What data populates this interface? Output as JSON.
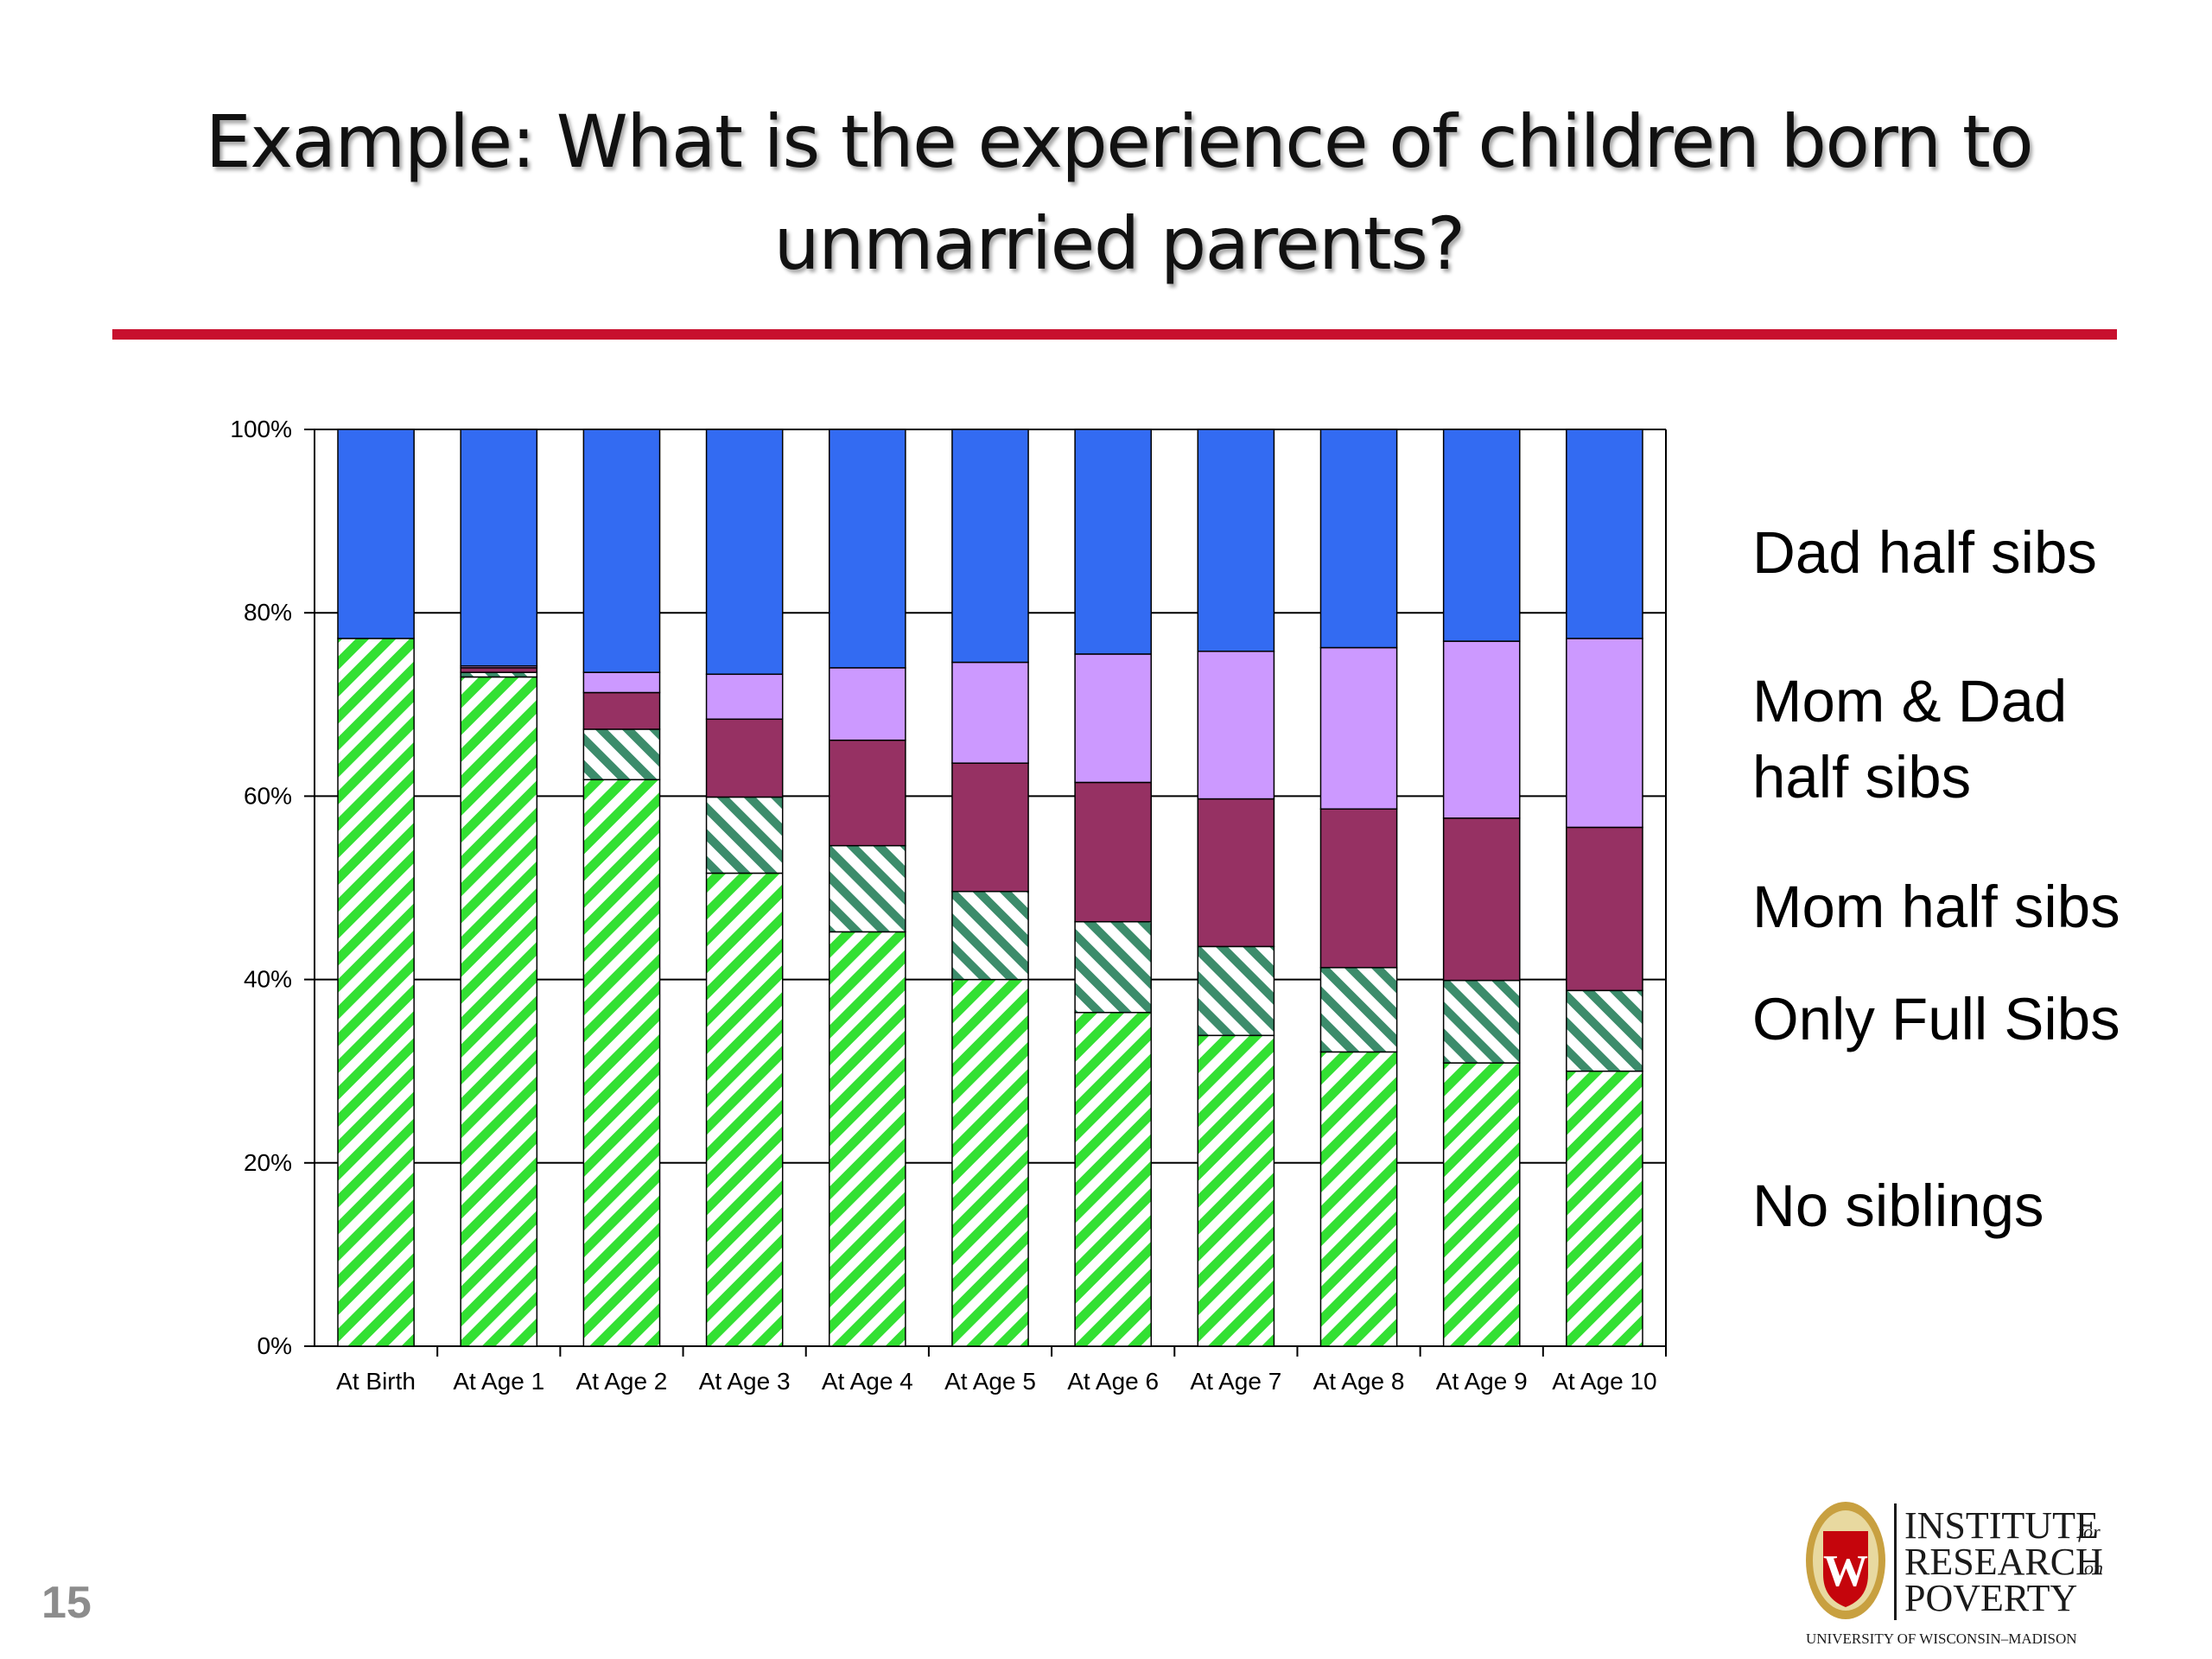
{
  "slide": {
    "title_line1": "Example: What is the experience of children born to",
    "title_line2": "unmarried parents?",
    "page_number": "15"
  },
  "colors": {
    "title_rule": "#c8102e",
    "dad_half_sibs": "#336bf2",
    "mom_dad_half_sibs": "#cc99ff",
    "mom_half_sibs": "#963163",
    "only_full_sibs": "#3c8c6b",
    "no_siblings": "#33e033"
  },
  "legend": [
    {
      "label_line1": "Dad half sibs",
      "label_line2": ""
    },
    {
      "label_line1": "Mom & Dad",
      "label_line2": "half sibs"
    },
    {
      "label_line1": "Mom half sibs",
      "label_line2": ""
    },
    {
      "label_line1": "Only Full Sibs",
      "label_line2": ""
    },
    {
      "label_line1": "No siblings",
      "label_line2": ""
    }
  ],
  "chart_data": {
    "type": "bar",
    "stacked": true,
    "percent_stacked": true,
    "categories": [
      "At Birth",
      "At Age 1",
      "At Age 2",
      "At Age 3",
      "At Age 4",
      "At Age 5",
      "At Age 6",
      "At Age 7",
      "At Age 8",
      "At Age 9",
      "At Age 10"
    ],
    "ylim": [
      0,
      100
    ],
    "yticks": [
      "0%",
      "20%",
      "40%",
      "60%",
      "80%",
      "100%"
    ],
    "grid": true,
    "legend_position": "right",
    "series": [
      {
        "name": "No siblings",
        "pattern": "diagonal-stripes",
        "color": "#33e033",
        "values": [
          77.2,
          73.0,
          61.8,
          51.6,
          45.2,
          40.0,
          36.4,
          33.9,
          32.1,
          30.9,
          30.0
        ]
      },
      {
        "name": "Only Full Sibs",
        "pattern": "diagonal-stripes",
        "color": "#3c8c6b",
        "values": [
          0.0,
          0.5,
          5.5,
          8.3,
          9.4,
          9.6,
          9.9,
          9.7,
          9.2,
          9.0,
          8.8
        ]
      },
      {
        "name": "Mom half sibs",
        "pattern": "solid",
        "color": "#963163",
        "values": [
          0.0,
          0.5,
          4.0,
          8.5,
          11.5,
          14.0,
          15.2,
          16.1,
          17.3,
          17.7,
          17.8
        ]
      },
      {
        "name": "Mom & Dad half sibs",
        "pattern": "solid",
        "color": "#cc99ff",
        "values": [
          0.0,
          0.2,
          2.2,
          4.9,
          7.9,
          11.0,
          14.0,
          16.1,
          17.6,
          19.3,
          20.6
        ]
      },
      {
        "name": "Dad half sibs",
        "pattern": "solid",
        "color": "#336bf2",
        "values": [
          22.8,
          25.8,
          26.5,
          26.7,
          26.0,
          25.4,
          24.5,
          24.2,
          23.8,
          23.1,
          22.8
        ]
      }
    ]
  },
  "logo": {
    "line1": "INSTITUTE",
    "line1_suffix": "for",
    "line2": "RESEARCH",
    "line2_suffix": "on",
    "line3": "POVERTY",
    "subline": "UNIVERSITY OF WISCONSIN–MADISON",
    "crest_letter": "W"
  }
}
